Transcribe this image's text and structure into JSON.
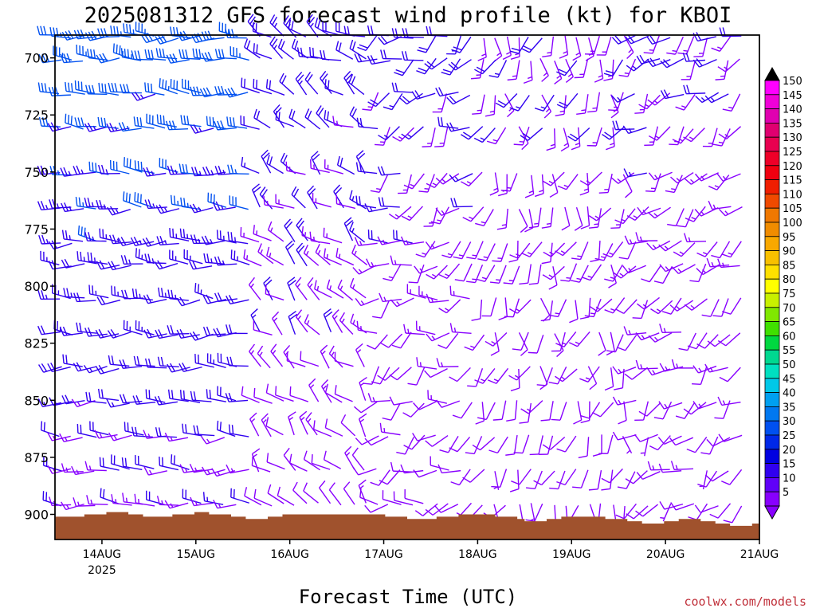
{
  "chart_data": {
    "type": "wind-barb-time-height",
    "title": "2025081312 GFS forecast wind profile (kt) for KBOI",
    "xlabel": "Forecast Time (UTC)",
    "ylabel": "",
    "credit": "coolwx.com/models",
    "x_ticks": [
      {
        "label": "14AUG",
        "sublabel": "2025",
        "hours": 12
      },
      {
        "label": "15AUG",
        "hours": 36
      },
      {
        "label": "16AUG",
        "hours": 60
      },
      {
        "label": "17AUG",
        "hours": 84
      },
      {
        "label": "18AUG",
        "hours": 108
      },
      {
        "label": "19AUG",
        "hours": 132
      },
      {
        "label": "20AUG",
        "hours": 156
      },
      {
        "label": "21AUG",
        "hours": 180
      }
    ],
    "x_range_hours": [
      0,
      180
    ],
    "y_ticks": [
      700,
      725,
      750,
      775,
      800,
      825,
      850,
      875,
      900
    ],
    "y_range_hpa": [
      690,
      911
    ],
    "y_inverted": true,
    "pressure_levels": [
      690,
      700,
      715,
      730,
      750,
      765,
      780,
      790,
      805,
      820,
      835,
      850,
      865,
      880,
      895
    ],
    "terrain_hpa": [
      901,
      901,
      901,
      901,
      900,
      900,
      900,
      899,
      899,
      899,
      900,
      900,
      901,
      901,
      901,
      901,
      900,
      900,
      900,
      899,
      899,
      900,
      900,
      900,
      901,
      901,
      902,
      902,
      902,
      901,
      901,
      900,
      900,
      900,
      900,
      900,
      900,
      900,
      900,
      900,
      900,
      900,
      900,
      900,
      900,
      901,
      901,
      901,
      902,
      902,
      902,
      902,
      901,
      901,
      901,
      900,
      900,
      900,
      900,
      900,
      901,
      901,
      901,
      902,
      903,
      903,
      903,
      902,
      902,
      901,
      901,
      901,
      901,
      901,
      901,
      902,
      902,
      902,
      903,
      903,
      904,
      904,
      904,
      903,
      903,
      902,
      902,
      902,
      903,
      903,
      904,
      904,
      905,
      905,
      905,
      904
    ],
    "colorbar": {
      "unit": "kt",
      "labels": [
        "150",
        "145",
        "140",
        "135",
        "130",
        "125",
        "120",
        "115",
        "110",
        "105",
        "100",
        "95",
        "90",
        "85",
        "80",
        "75",
        "70",
        "65",
        "60",
        "55",
        "50",
        "45",
        "40",
        "35",
        "30",
        "25",
        "20",
        "15",
        "10",
        "5"
      ],
      "colors": [
        "#ff00ff",
        "#f000d8",
        "#e000b0",
        "#e00070",
        "#e80050",
        "#ee0028",
        "#f00010",
        "#f01e00",
        "#f04a00",
        "#f07800",
        "#f08c00",
        "#f8a800",
        "#f8c000",
        "#ffe000",
        "#ffff00",
        "#c8f000",
        "#80e800",
        "#40e000",
        "#00d840",
        "#00d890",
        "#00e0c0",
        "#00c8e8",
        "#00a0f0",
        "#0078f0",
        "#0050f0",
        "#0028e8",
        "#0000e0",
        "#3000f0",
        "#6000f8",
        "#8800ff"
      ],
      "top_triangle_color": "#000000",
      "bottom_triangle_color": "#8800ff"
    },
    "colors": {
      "terrain": "#a0522d",
      "barb_low": "#8800ff",
      "barb_mid": "#3000f0",
      "barb_high": "#0050f0"
    }
  }
}
